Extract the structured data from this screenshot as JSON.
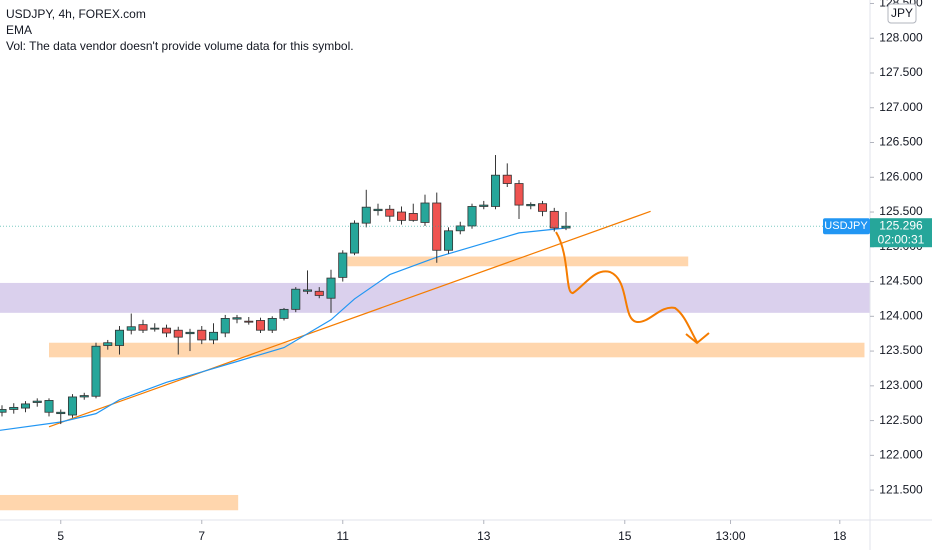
{
  "chart_data": {
    "type": "candlestick",
    "title": "USDJPY, 4h, FOREX.com",
    "subtitle": "Vol: The data vendor doesn't provide volume data for this symbol.",
    "x": [
      0,
      1,
      2,
      3,
      4,
      5,
      6,
      7,
      8,
      9,
      10,
      11,
      12,
      13,
      14,
      15,
      16,
      17,
      18,
      19,
      20,
      21,
      22,
      23,
      24,
      25,
      26,
      27,
      28,
      29,
      30,
      31,
      32,
      33,
      34,
      35,
      36,
      37,
      38,
      39,
      40,
      41,
      42,
      43,
      44,
      45,
      46,
      47,
      48
    ],
    "open": [
      122.62,
      122.66,
      122.68,
      122.76,
      122.62,
      122.6,
      122.58,
      122.84,
      122.85,
      123.58,
      123.58,
      123.8,
      123.88,
      123.82,
      123.83,
      123.8,
      123.75,
      123.8,
      123.66,
      123.76,
      123.96,
      123.93,
      123.94,
      123.8,
      123.97,
      124.1,
      124.36,
      124.36,
      124.26,
      124.56,
      124.91,
      125.34,
      125.52,
      125.54,
      125.5,
      125.48,
      125.35,
      125.63,
      124.95,
      125.23,
      125.3,
      125.58,
      125.58,
      126.03,
      125.91,
      125.59,
      125.62,
      125.51,
      125.27
    ],
    "high": [
      122.72,
      122.75,
      122.78,
      122.82,
      122.82,
      122.66,
      122.88,
      122.9,
      123.62,
      123.66,
      123.86,
      124.04,
      123.95,
      123.9,
      123.88,
      123.85,
      123.82,
      123.86,
      123.9,
      124.02,
      124.02,
      123.99,
      123.98,
      124.0,
      124.12,
      124.42,
      124.66,
      124.42,
      124.67,
      124.95,
      125.38,
      125.82,
      125.62,
      125.6,
      125.58,
      125.62,
      125.75,
      125.78,
      125.28,
      125.36,
      125.62,
      125.66,
      126.32,
      126.2,
      125.96,
      125.64,
      125.66,
      125.56,
      125.5
    ],
    "low": [
      122.56,
      122.6,
      122.62,
      122.7,
      122.56,
      122.45,
      122.54,
      122.8,
      122.82,
      123.52,
      123.45,
      123.74,
      123.76,
      123.78,
      123.7,
      123.45,
      123.5,
      123.6,
      123.6,
      123.7,
      123.9,
      123.88,
      123.76,
      123.76,
      123.94,
      124.06,
      124.32,
      124.26,
      124.05,
      124.5,
      124.88,
      125.28,
      125.45,
      125.36,
      125.32,
      125.36,
      125.3,
      124.77,
      124.9,
      125.18,
      125.26,
      125.54,
      125.54,
      125.86,
      125.4,
      125.54,
      125.44,
      125.22,
      125.24
    ],
    "close": [
      122.66,
      122.69,
      122.74,
      122.78,
      122.79,
      122.62,
      122.84,
      122.86,
      123.57,
      123.62,
      123.8,
      123.85,
      123.8,
      123.83,
      123.76,
      123.7,
      123.77,
      123.66,
      123.77,
      123.97,
      123.98,
      123.92,
      123.8,
      123.97,
      124.1,
      124.39,
      124.38,
      124.3,
      124.55,
      124.91,
      125.34,
      125.57,
      125.54,
      125.44,
      125.38,
      125.38,
      125.63,
      124.95,
      125.23,
      125.3,
      125.58,
      125.6,
      126.03,
      125.91,
      125.6,
      125.61,
      125.51,
      125.27,
      125.296
    ],
    "up_color": "#26a69a",
    "down_color": "#ef5350",
    "ema": {
      "name": "EMA",
      "color": "#2196f3",
      "x": [
        -0.17,
        5,
        8,
        10,
        14,
        17,
        20,
        24,
        28,
        30,
        33,
        37,
        40,
        44,
        48
      ],
      "values": [
        122.36,
        122.48,
        122.6,
        122.8,
        123.05,
        123.2,
        123.35,
        123.55,
        123.95,
        124.25,
        124.6,
        124.85,
        125.0,
        125.2,
        125.27
      ]
    },
    "zones": [
      {
        "x": [
          4,
          73.4
        ],
        "y": [
          123.41,
          123.62
        ],
        "color": "#ffcc99"
      },
      {
        "x": [
          -0.17,
          73.87
        ],
        "y": [
          124.05,
          124.48
        ],
        "color": "#d1c4e9"
      },
      {
        "x": [
          29.4,
          58.4
        ],
        "y": [
          124.72,
          124.86
        ],
        "color": "#ffcc99"
      },
      {
        "x": [
          -0.17,
          20.1
        ],
        "y": [
          121.21,
          121.43
        ],
        "color": "#ffcc99"
      }
    ],
    "trendline": {
      "x": [
        4,
        55.2
      ],
      "y": [
        122.41,
        125.51
      ],
      "color": "#f57c00"
    },
    "xlim": [
      -0.17,
      73.87
    ],
    "ylim": [
      121.07,
      128.55
    ],
    "xticks": [
      {
        "value": 5,
        "label": "5"
      },
      {
        "value": 17,
        "label": "7"
      },
      {
        "value": 29,
        "label": "11"
      },
      {
        "value": 41,
        "label": "13"
      },
      {
        "value": 53,
        "label": "15"
      },
      {
        "value": 62,
        "label": "13:00"
      },
      {
        "value": 71.3,
        "label": "18"
      }
    ],
    "yticks": [
      {
        "value": 121.5,
        "label": "121.500"
      },
      {
        "value": 122,
        "label": "122.000"
      },
      {
        "value": 122.5,
        "label": "122.500"
      },
      {
        "value": 123,
        "label": "123.000"
      },
      {
        "value": 123.5,
        "label": "123.500"
      },
      {
        "value": 124,
        "label": "124.000"
      },
      {
        "value": 124.5,
        "label": "124.500"
      },
      {
        "value": 125,
        "label": "125.000"
      },
      {
        "value": 125.5,
        "label": "125.500"
      },
      {
        "value": 126,
        "label": "126.000"
      },
      {
        "value": 126.5,
        "label": "126.500"
      },
      {
        "value": 127,
        "label": "127.000"
      },
      {
        "value": 127.5,
        "label": "127.500"
      },
      {
        "value": 128,
        "label": "128.000"
      },
      {
        "value": 128.5,
        "label": "128.500"
      }
    ],
    "currency": "JPY",
    "symbol": "USDJPY",
    "last_price": {
      "value": 125.296,
      "label": "125.296"
    },
    "countdown": "02:00:31"
  }
}
